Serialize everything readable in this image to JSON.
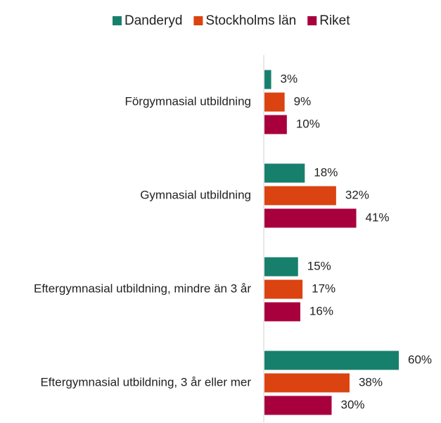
{
  "chart_data": {
    "type": "bar",
    "orientation": "horizontal",
    "categories": [
      "Förgymnasial utbildning",
      "Gymnasial utbildning",
      "Eftergymnasial utbildning, mindre än 3 år",
      "Eftergymnasial utbildning, 3 år eller mer"
    ],
    "series": [
      {
        "name": "Danderyd",
        "color": "#17806d",
        "values": [
          3,
          18,
          15,
          60
        ],
        "value_labels": [
          "3%",
          "18%",
          "15%",
          "60%"
        ]
      },
      {
        "name": "Stockholms län",
        "color": "#db4310",
        "values": [
          9,
          32,
          17,
          38
        ],
        "value_labels": [
          "9%",
          "32%",
          "17%",
          "38%"
        ]
      },
      {
        "name": "Riket",
        "color": "#a8003d",
        "values": [
          10,
          41,
          16,
          30
        ],
        "value_labels": [
          "10%",
          "41%",
          "16%",
          "30%"
        ]
      }
    ],
    "legend": "top"
  }
}
